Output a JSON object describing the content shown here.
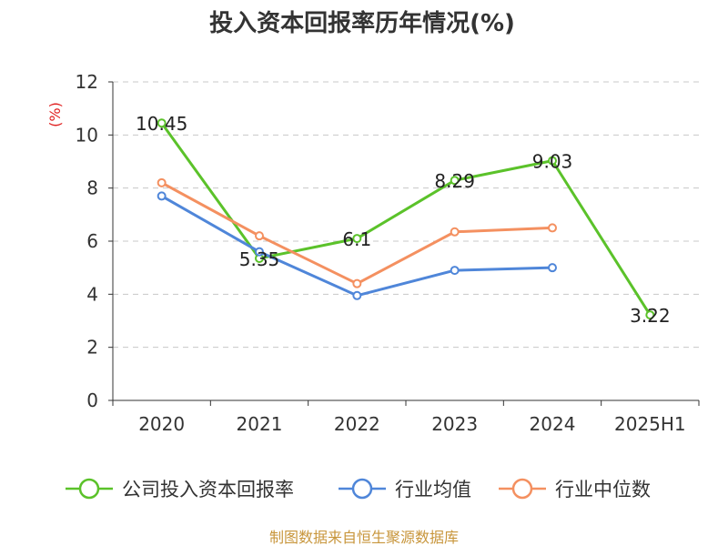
{
  "chart_data": {
    "type": "line",
    "title": "投入资本回报率历年情况(%)",
    "ylabel": "(%)",
    "xlabel": "",
    "categories": [
      "2020",
      "2021",
      "2022",
      "2023",
      "2024",
      "2025H1"
    ],
    "ylim": [
      0,
      12
    ],
    "yticks": [
      0,
      2,
      4,
      6,
      8,
      10,
      12
    ],
    "grid": true,
    "legend_position": "bottom",
    "series": [
      {
        "name": "公司投入资本回报率",
        "color": "#5bc22a",
        "values": [
          10.45,
          5.35,
          6.1,
          8.29,
          9.03,
          3.22
        ],
        "labels": [
          "10.45",
          "5.35",
          "6.1",
          "8.29",
          "9.03",
          "3.22"
        ]
      },
      {
        "name": "行业均值",
        "color": "#4f86d9",
        "values": [
          7.7,
          5.6,
          3.95,
          4.9,
          5.0,
          null
        ]
      },
      {
        "name": "行业中位数",
        "color": "#f49060",
        "values": [
          8.2,
          6.2,
          4.4,
          6.35,
          6.5,
          null
        ]
      }
    ]
  },
  "source": "制图数据来自恒生聚源数据库"
}
